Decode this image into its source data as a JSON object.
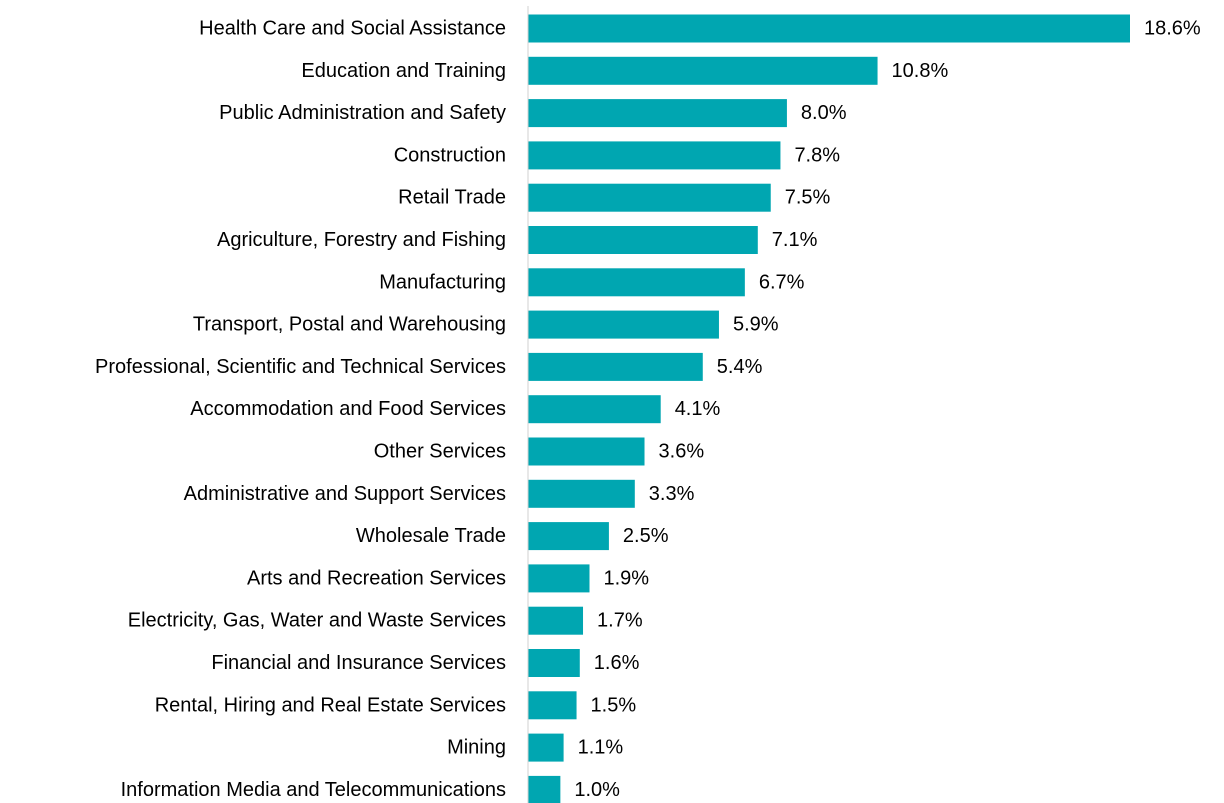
{
  "chart_data": {
    "type": "bar",
    "orientation": "horizontal",
    "title": "",
    "xlabel": "",
    "ylabel": "",
    "categories": [
      "Health Care and Social Assistance",
      "Education and Training",
      "Public Administration and Safety",
      "Construction",
      "Retail Trade",
      "Agriculture, Forestry and Fishing",
      "Manufacturing",
      "Transport, Postal and Warehousing",
      "Professional, Scientific and Technical Services",
      "Accommodation and Food Services",
      "Other Services",
      "Administrative and Support Services",
      "Wholesale Trade",
      "Arts and Recreation Services",
      "Electricity, Gas, Water and Waste Services",
      "Financial and Insurance Services",
      "Rental, Hiring and Real Estate Services",
      "Mining",
      "Information Media and Telecommunications"
    ],
    "values": [
      18.6,
      10.8,
      8.0,
      7.8,
      7.5,
      7.1,
      6.7,
      5.9,
      5.4,
      4.1,
      3.6,
      3.3,
      2.5,
      1.9,
      1.7,
      1.6,
      1.5,
      1.1,
      1.0
    ],
    "data_labels": [
      "18.6%",
      "10.8%",
      "8.0%",
      "7.8%",
      "7.5%",
      "7.1%",
      "6.7%",
      "5.9%",
      "5.4%",
      "4.1%",
      "3.6%",
      "3.3%",
      "2.5%",
      "1.9%",
      "1.7%",
      "1.6%",
      "1.5%",
      "1.1%",
      "1.0%"
    ],
    "unit": "%",
    "xlim": [
      0,
      18.6
    ],
    "grid": false,
    "legend": "none",
    "bar_color": "#00A6B1",
    "axis_color": "#D0D0D0"
  }
}
